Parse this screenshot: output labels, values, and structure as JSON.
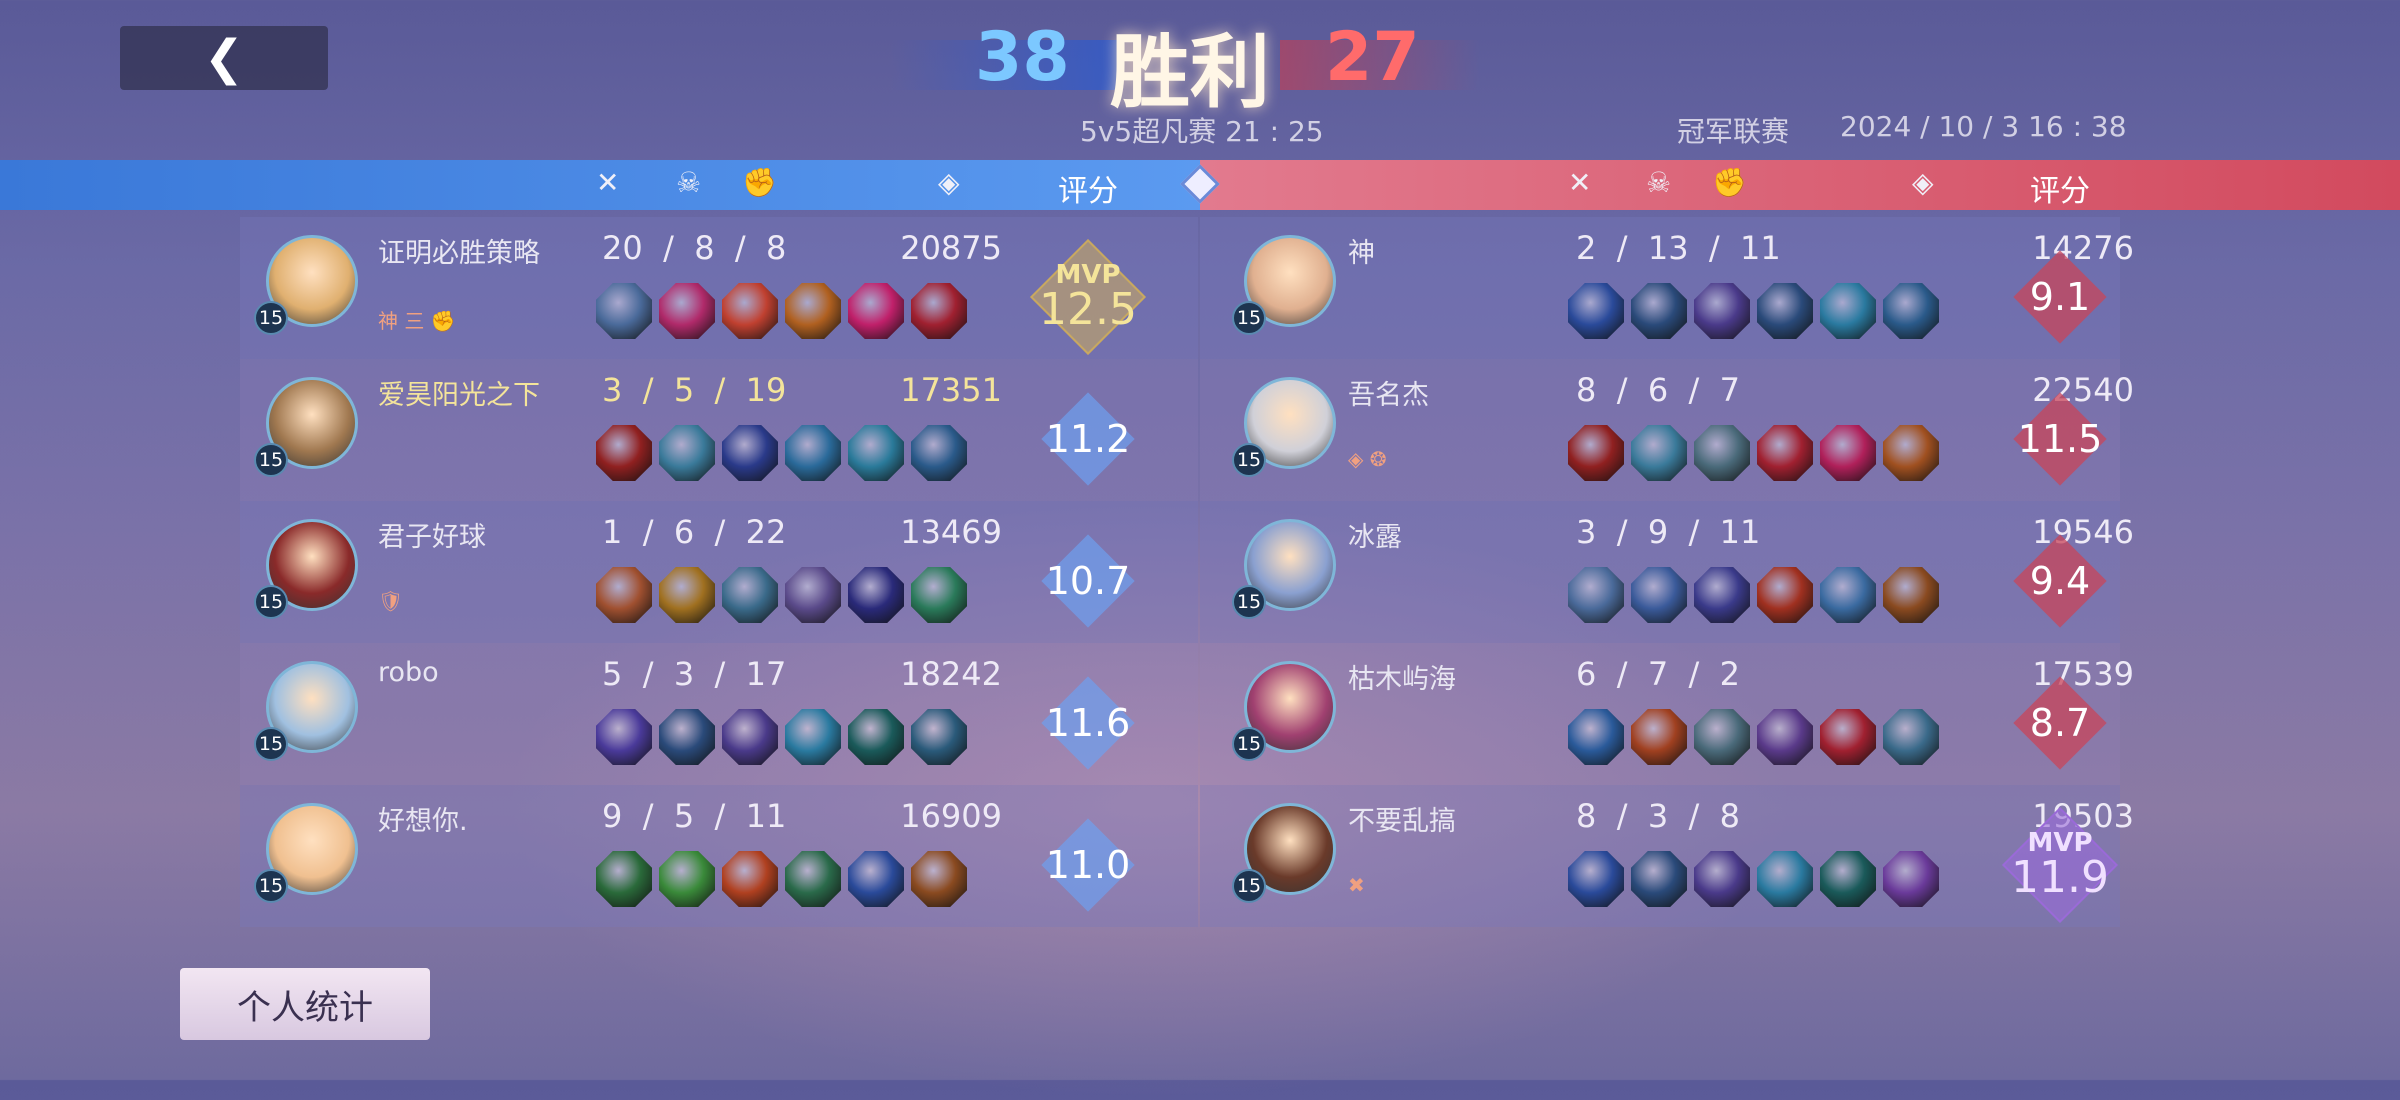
{
  "header": {
    "back_icon": "chevron-left",
    "blue_kills": "38",
    "result": "胜利",
    "red_kills": "27",
    "mode": "5v5超凡赛 21 : 25",
    "league": "冠军联赛",
    "datetime": "2024 / 10 / 3 16 : 38"
  },
  "columns": {
    "kills_icon": "crossed-swords",
    "deaths_icon": "skull",
    "assists_icon": "fist",
    "gold_icon": "coin",
    "rating": "评分"
  },
  "colors": {
    "blue_team": "#4a88e4",
    "red_team": "#dc5a6e",
    "mvp_gold": "#f4e49a",
    "mvp_purple": "#9a6ad8"
  },
  "blue_team": [
    {
      "name": "证明必胜策略",
      "level": "15",
      "kda": "20  /  8  /  8",
      "gold": "20875",
      "rating": "12.5",
      "mvp": "MVP",
      "badges": "神 三 ✊",
      "highlight": false,
      "avatar": "#e0b070",
      "items": [
        "#4a6a9a",
        "#b02a6a",
        "#c04030",
        "#b06020",
        "#c0206a",
        "#a02030"
      ]
    },
    {
      "name": "爱昊阳光之下",
      "level": "15",
      "kda": "3  /  5  /  19",
      "gold": "17351",
      "rating": "11.2",
      "highlight": true,
      "avatar": "#a07850",
      "items": [
        "#902020",
        "#3a7a9a",
        "#2a3a8a",
        "#2a6a9a",
        "#2a7a9a",
        "#2a5a8a"
      ]
    },
    {
      "name": "君子好球",
      "level": "15",
      "kda": "1  /  6  /  22",
      "gold": "13469",
      "rating": "10.7",
      "badges": "🛡",
      "highlight": false,
      "avatar": "#8a2a2a",
      "items": [
        "#a05030",
        "#a07020",
        "#3a6a8a",
        "#5a4a8a",
        "#2a2a7a",
        "#2a7a5a"
      ]
    },
    {
      "name": "robo",
      "level": "15",
      "kda": "5  /  3  /  17",
      "gold": "18242",
      "rating": "11.6",
      "highlight": false,
      "avatar": "#a0c0e0",
      "items": [
        "#4a3a9a",
        "#2a4a7a",
        "#4a3a8a",
        "#2a7aa0",
        "#1a5a5a",
        "#2a5a7a"
      ]
    },
    {
      "name": "好想你.",
      "level": "15",
      "kda": "9  /  5  /  11",
      "gold": "16909",
      "rating": "11.0",
      "highlight": false,
      "avatar": "#f0c090",
      "items": [
        "#2a6a3a",
        "#3a8a3a",
        "#b04020",
        "#2a6a4a",
        "#2a4a9a",
        "#8a4a20"
      ]
    }
  ],
  "red_team": [
    {
      "name": "神",
      "level": "15",
      "kda": "2  /  13  /  11",
      "gold": "14276",
      "rating": "9.1",
      "avatar": "#e0b090",
      "items": [
        "#2a4a9a",
        "#2a4a7a",
        "#4a3a8a",
        "#2a4a7a",
        "#2a7aa0",
        "#2a5a8a"
      ]
    },
    {
      "name": "吾名杰",
      "level": "15",
      "kda": "8  /  6  /  7",
      "gold": "22540",
      "rating": "11.5",
      "badges": "◈ ❂",
      "avatar": "#d0d0d8",
      "items": [
        "#902020",
        "#3a7a9a",
        "#4a6a7a",
        "#a02030",
        "#b0205a",
        "#a05020"
      ]
    },
    {
      "name": "冰露",
      "level": "15",
      "kda": "3  /  9  /  11",
      "gold": "19546",
      "rating": "9.4",
      "avatar": "#8aa0d0",
      "items": [
        "#4a6a9a",
        "#3a5a9a",
        "#3a3a8a",
        "#a03020",
        "#3a6aa0",
        "#8a4a20"
      ]
    },
    {
      "name": "枯木屿海",
      "level": "15",
      "kda": "6  /  7  /  2",
      "gold": "17539",
      "rating": "8.7",
      "avatar": "#a04070",
      "items": [
        "#2a5a9a",
        "#a04020",
        "#4a6a7a",
        "#5a3a8a",
        "#a02030",
        "#3a6a8a"
      ]
    },
    {
      "name": "不要乱搞",
      "level": "15",
      "kda": "8  /  3  /  8",
      "gold": "19503",
      "rating": "11.9",
      "mvp": "MVP",
      "badges": "✖",
      "avatar": "#6a3a2a",
      "items": [
        "#2a4a9a",
        "#2a4a7a",
        "#4a3a8a",
        "#2a7aa0",
        "#1a5a5a",
        "#6a3a9a"
      ]
    }
  ],
  "footer": {
    "personal_stats": "个人统计"
  }
}
